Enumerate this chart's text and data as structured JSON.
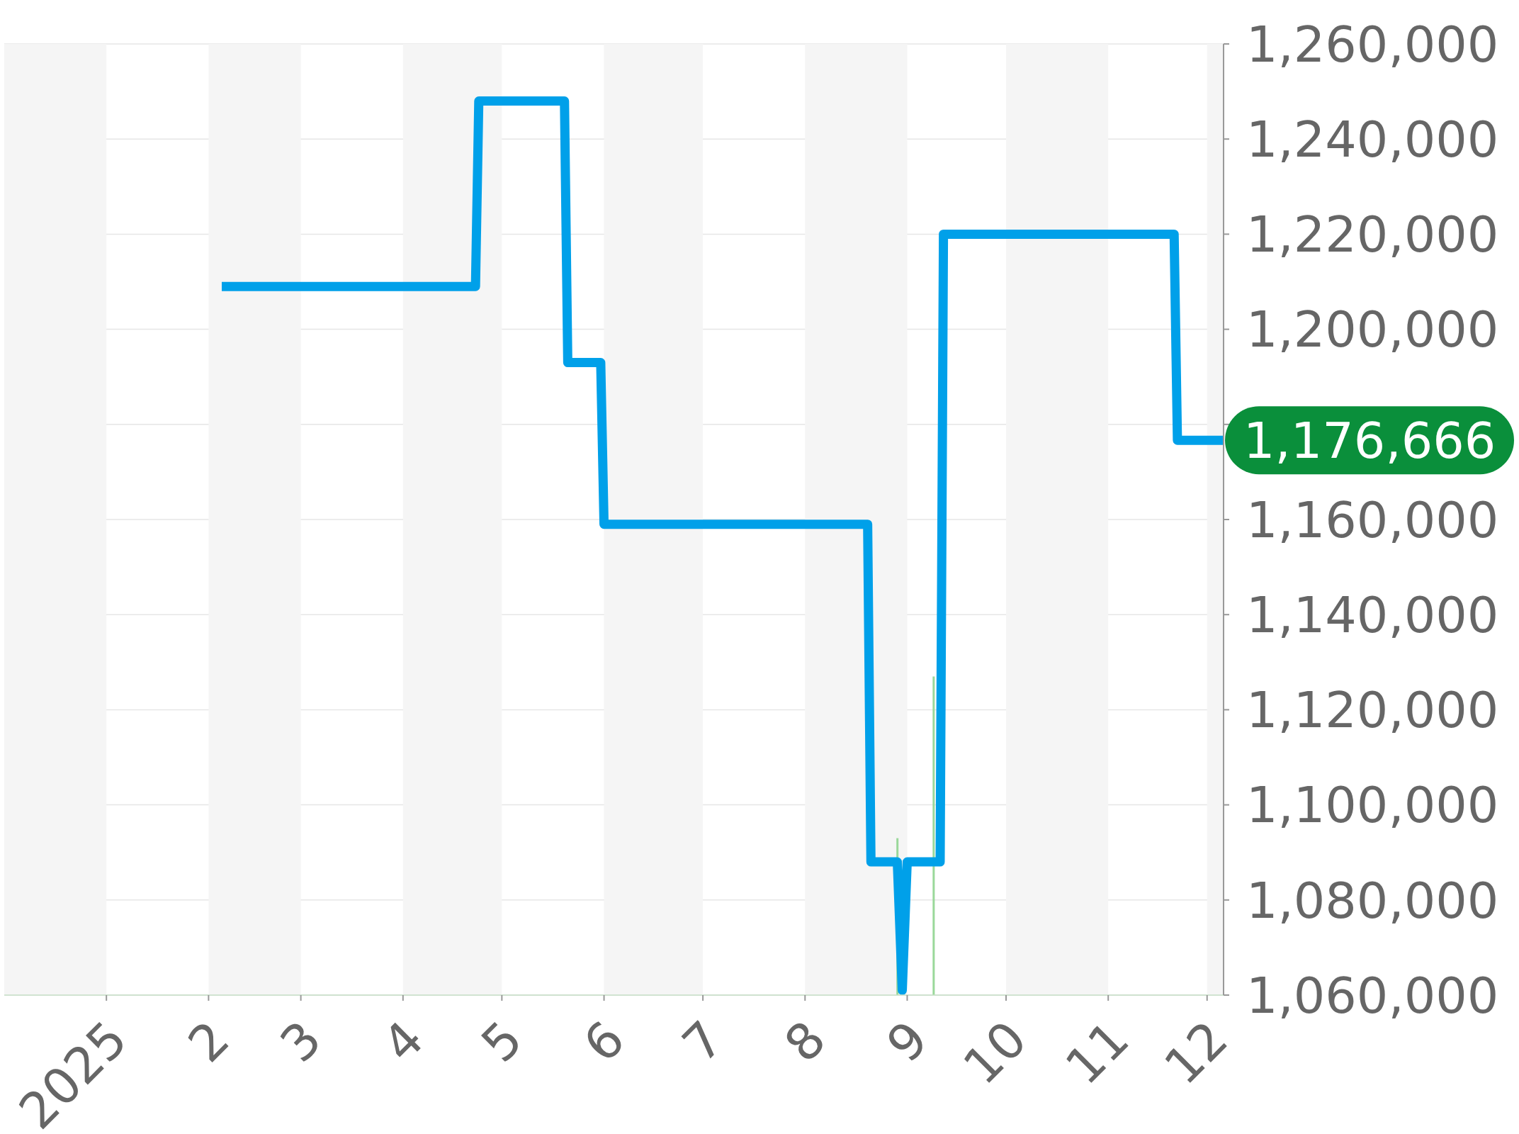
{
  "chart_data": {
    "type": "line",
    "xlim": [
      "2024-12-01",
      "2025-12-06"
    ],
    "xticks": [
      {
        "value": "2025-01-01",
        "label": "2025"
      },
      {
        "value": "2025-02-01",
        "label": "2"
      },
      {
        "value": "2025-03-01",
        "label": "3"
      },
      {
        "value": "2025-04-01",
        "label": "4"
      },
      {
        "value": "2025-05-01",
        "label": "5"
      },
      {
        "value": "2025-06-01",
        "label": "6"
      },
      {
        "value": "2025-07-01",
        "label": "7"
      },
      {
        "value": "2025-08-01",
        "label": "8"
      },
      {
        "value": "2025-09-01",
        "label": "9"
      },
      {
        "value": "2025-10-01",
        "label": "10"
      },
      {
        "value": "2025-11-01",
        "label": "11"
      },
      {
        "value": "2025-12-01",
        "label": "12"
      }
    ],
    "ylim": [
      1060000,
      1260000
    ],
    "yticks": [
      {
        "value": 1060000,
        "label": "1,060,000"
      },
      {
        "value": 1080000,
        "label": "1,080,000"
      },
      {
        "value": 1100000,
        "label": "1,100,000"
      },
      {
        "value": 1120000,
        "label": "1,120,000"
      },
      {
        "value": 1140000,
        "label": "1,140,000"
      },
      {
        "value": 1160000,
        "label": "1,160,000"
      },
      {
        "value": 1180000,
        "label": null
      },
      {
        "value": 1200000,
        "label": "1,200,000"
      },
      {
        "value": 1220000,
        "label": "1,220,000"
      },
      {
        "value": 1240000,
        "label": "1,240,000"
      },
      {
        "value": 1260000,
        "label": "1,260,000"
      }
    ],
    "grid": "y",
    "marker": "none",
    "series": [
      {
        "color": "#00a0e9",
        "x": [
          "2025-02-05",
          "2025-04-23",
          "2025-04-24",
          "2025-05-20",
          "2025-05-21",
          "2025-05-31",
          "2025-06-01",
          "2025-08-20",
          "2025-08-21",
          "2025-08-29",
          "2025-08-30T12:00",
          "2025-09-01",
          "2025-09-11",
          "2025-09-12",
          "2025-11-21",
          "2025-11-22",
          "2025-12-06"
        ],
        "values": [
          1209000,
          1209000,
          1248000,
          1248000,
          1193000,
          1193000,
          1159000,
          1159000,
          1088000,
          1088000,
          1061000,
          1088000,
          1088000,
          1220000,
          1220000,
          1176666,
          1176666
        ]
      },
      {
        "type": "bar",
        "color": "#9ad89a",
        "x": [
          "2025-08-29",
          "2025-09-09"
        ],
        "values": [
          1093000,
          1127000
        ]
      }
    ],
    "bands": [
      {
        "axis": "x",
        "from": "2024-12-01",
        "to": "2025-01-01",
        "color": "#f5f5f5"
      },
      {
        "axis": "x",
        "from": "2025-02-01",
        "to": "2025-03-01",
        "color": "#f5f5f5"
      },
      {
        "axis": "x",
        "from": "2025-04-01",
        "to": "2025-05-01",
        "color": "#f5f5f5"
      },
      {
        "axis": "x",
        "from": "2025-06-01",
        "to": "2025-07-01",
        "color": "#f5f5f5"
      },
      {
        "axis": "x",
        "from": "2025-08-01",
        "to": "2025-09-01",
        "color": "#f5f5f5"
      },
      {
        "axis": "x",
        "from": "2025-10-01",
        "to": "2025-11-01",
        "color": "#f5f5f5"
      },
      {
        "axis": "x",
        "from": "2025-12-01",
        "to": "2025-12-06",
        "color": "#f5f5f5"
      }
    ],
    "annotations": [
      {
        "text": "1,176,666",
        "x": "2025-12-06",
        "y": 1176666
      }
    ]
  }
}
